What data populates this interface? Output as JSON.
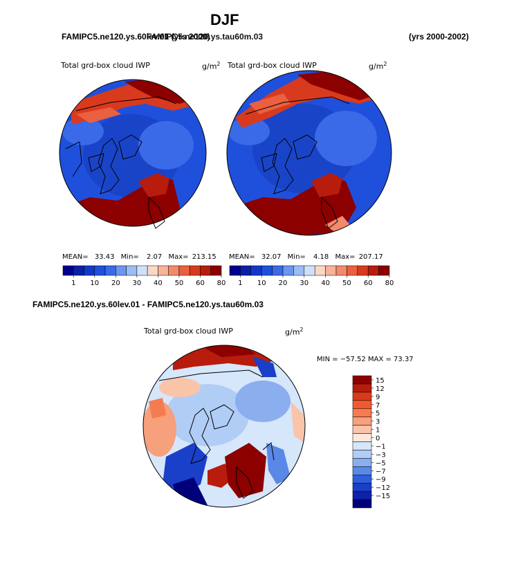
{
  "header": {
    "season": "DJF",
    "case_a": "FAMIPC5.ne120.ys.60lev.01",
    "case_b": "FAMIPC5.ne120.ys.tau60m.03",
    "years_a": "(yrs 2000)",
    "years_b": "(yrs 2000-2002)",
    "diff_title": "FAMIPC5.ne120.ys.60lev.01 - FAMIPC5.ne120.ys.tau60m.03"
  },
  "panels": [
    {
      "field": "Total grd-box cloud IWP",
      "units": "g/m",
      "unit_exp": "2",
      "mean_label": "MEAN=",
      "mean": "33.43",
      "min_label": "Min=",
      "min": "2.07",
      "max_label": "Max=",
      "max": "213.15"
    },
    {
      "field": "Total grd-box cloud IWP",
      "units": "g/m",
      "unit_exp": "2",
      "mean_label": "MEAN=",
      "mean": "32.07",
      "min_label": "Min=",
      "min": "4.18",
      "max_label": "Max=",
      "max": "207.17"
    }
  ],
  "diff_panel": {
    "field": "Total grd-box cloud IWP",
    "units": "g/m",
    "unit_exp": "2",
    "minmax": "MIN = −57.52 MAX =  73.37"
  },
  "chart_data": [
    {
      "type": "heatmap",
      "projection": "north-polar-stereographic",
      "title": "Total grd-box cloud IWP",
      "units": "g/m^2",
      "mean": 33.43,
      "min": 2.07,
      "max": 213.15,
      "levels": [
        1,
        10,
        20,
        30,
        40,
        50,
        60,
        80
      ],
      "colorbar_labels": [
        "1",
        "10",
        "20",
        "30",
        "40",
        "50",
        "60",
        "80"
      ],
      "colors": [
        "#00008c",
        "#0a1fa8",
        "#1238c8",
        "#1f50dc",
        "#3a6ae8",
        "#6b95ee",
        "#9cbdf4",
        "#cfe0fa",
        "#fbd8c6",
        "#f6b39a",
        "#f28a6c",
        "#ea6040",
        "#d83a1e",
        "#b81c0c",
        "#8c0000"
      ],
      "legend": "bottom"
    },
    {
      "type": "heatmap",
      "projection": "north-polar-stereographic",
      "title": "Total grd-box cloud IWP",
      "units": "g/m^2",
      "mean": 32.07,
      "min": 4.18,
      "max": 207.17,
      "levels": [
        1,
        10,
        20,
        30,
        40,
        50,
        60,
        80
      ],
      "colorbar_labels": [
        "1",
        "10",
        "20",
        "30",
        "40",
        "50",
        "60",
        "80"
      ],
      "legend": "bottom"
    },
    {
      "type": "heatmap",
      "projection": "north-polar-stereographic",
      "title": "Total grd-box cloud IWP",
      "units": "g/m^2",
      "min": -57.52,
      "max": 73.37,
      "levels": [
        -15,
        -12,
        -9,
        -7,
        -5,
        -3,
        -1,
        0,
        1,
        3,
        5,
        7,
        9,
        12,
        15
      ],
      "colorbar_labels": [
        "15",
        "12",
        "9",
        "7",
        "5",
        "3",
        "1",
        "0",
        "−1",
        "−3",
        "−5",
        "−7",
        "−9",
        "−12",
        "−15"
      ],
      "colors": [
        "#8c0000",
        "#b81c0c",
        "#d83a1e",
        "#f05a30",
        "#f47c50",
        "#f6a07c",
        "#f9c4a8",
        "#fde8dc",
        "#d6e6fb",
        "#b0cdf6",
        "#8aaeee",
        "#5a88e6",
        "#2f5fdc",
        "#1a3fc8",
        "#0c22a8",
        "#00007a"
      ],
      "legend": "right"
    }
  ]
}
